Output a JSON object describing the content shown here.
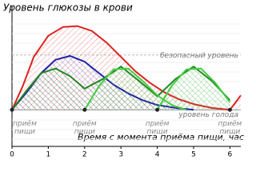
{
  "chart_data": {
    "type": "line",
    "title": "Уровень глюкозы в крови",
    "xlabel": "Время с момента приёма пищи, час",
    "xlim": [
      0,
      6.3
    ],
    "xticks": [
      0,
      1,
      2,
      3,
      4,
      5,
      6
    ],
    "ylim": [
      -38,
      100
    ],
    "reference_lines": [
      {
        "label": "безопасный уровень",
        "value": 57,
        "color": "#bbbbbb"
      },
      {
        "label": "уровень голода",
        "value": 0,
        "color": "#999999"
      }
    ],
    "meals": {
      "label_lines": [
        "приём",
        "пищи"
      ],
      "x": [
        0,
        2,
        4,
        6
      ],
      "color": "#222222"
    },
    "series": [
      {
        "color": "#dd2222",
        "x": [
          0,
          0.3,
          0.6,
          1,
          1.4,
          1.8,
          2.2,
          2.6,
          3,
          3.4,
          3.8,
          4.2,
          4.6,
          5,
          5.5,
          6,
          6.3
        ],
        "values": [
          0,
          25,
          55,
          77,
          86,
          87,
          82,
          70,
          55,
          40,
          28,
          18,
          11,
          6,
          2,
          0,
          15
        ]
      },
      {
        "color": "#2222aa",
        "x": [
          0,
          0.4,
          0.8,
          1.2,
          1.6,
          2,
          2.4,
          2.8,
          3.2,
          3.6,
          4,
          4.5,
          5
        ],
        "values": [
          0,
          18,
          38,
          52,
          56,
          50,
          38,
          26,
          17,
          10,
          5,
          2,
          0
        ]
      },
      {
        "color": "#228822",
        "x": [
          0,
          0.4,
          0.8,
          1.2,
          1.6,
          2,
          2.5,
          3,
          3.5,
          4,
          4.5,
          5,
          5.5,
          6
        ],
        "values": [
          0,
          20,
          38,
          43,
          35,
          22,
          32,
          45,
          30,
          14,
          32,
          45,
          30,
          10
        ]
      },
      {
        "color": "#44cc44",
        "x": [
          2,
          2.4,
          2.8,
          3.2,
          3.6,
          4,
          4.4,
          4.8
        ],
        "values": [
          0,
          25,
          42,
          43,
          30,
          15,
          5,
          0
        ]
      },
      {
        "color": "#44cc44",
        "x": [
          4,
          4.4,
          4.8,
          5.2,
          5.6,
          6
        ],
        "values": [
          0,
          25,
          42,
          43,
          28,
          8
        ]
      }
    ]
  }
}
